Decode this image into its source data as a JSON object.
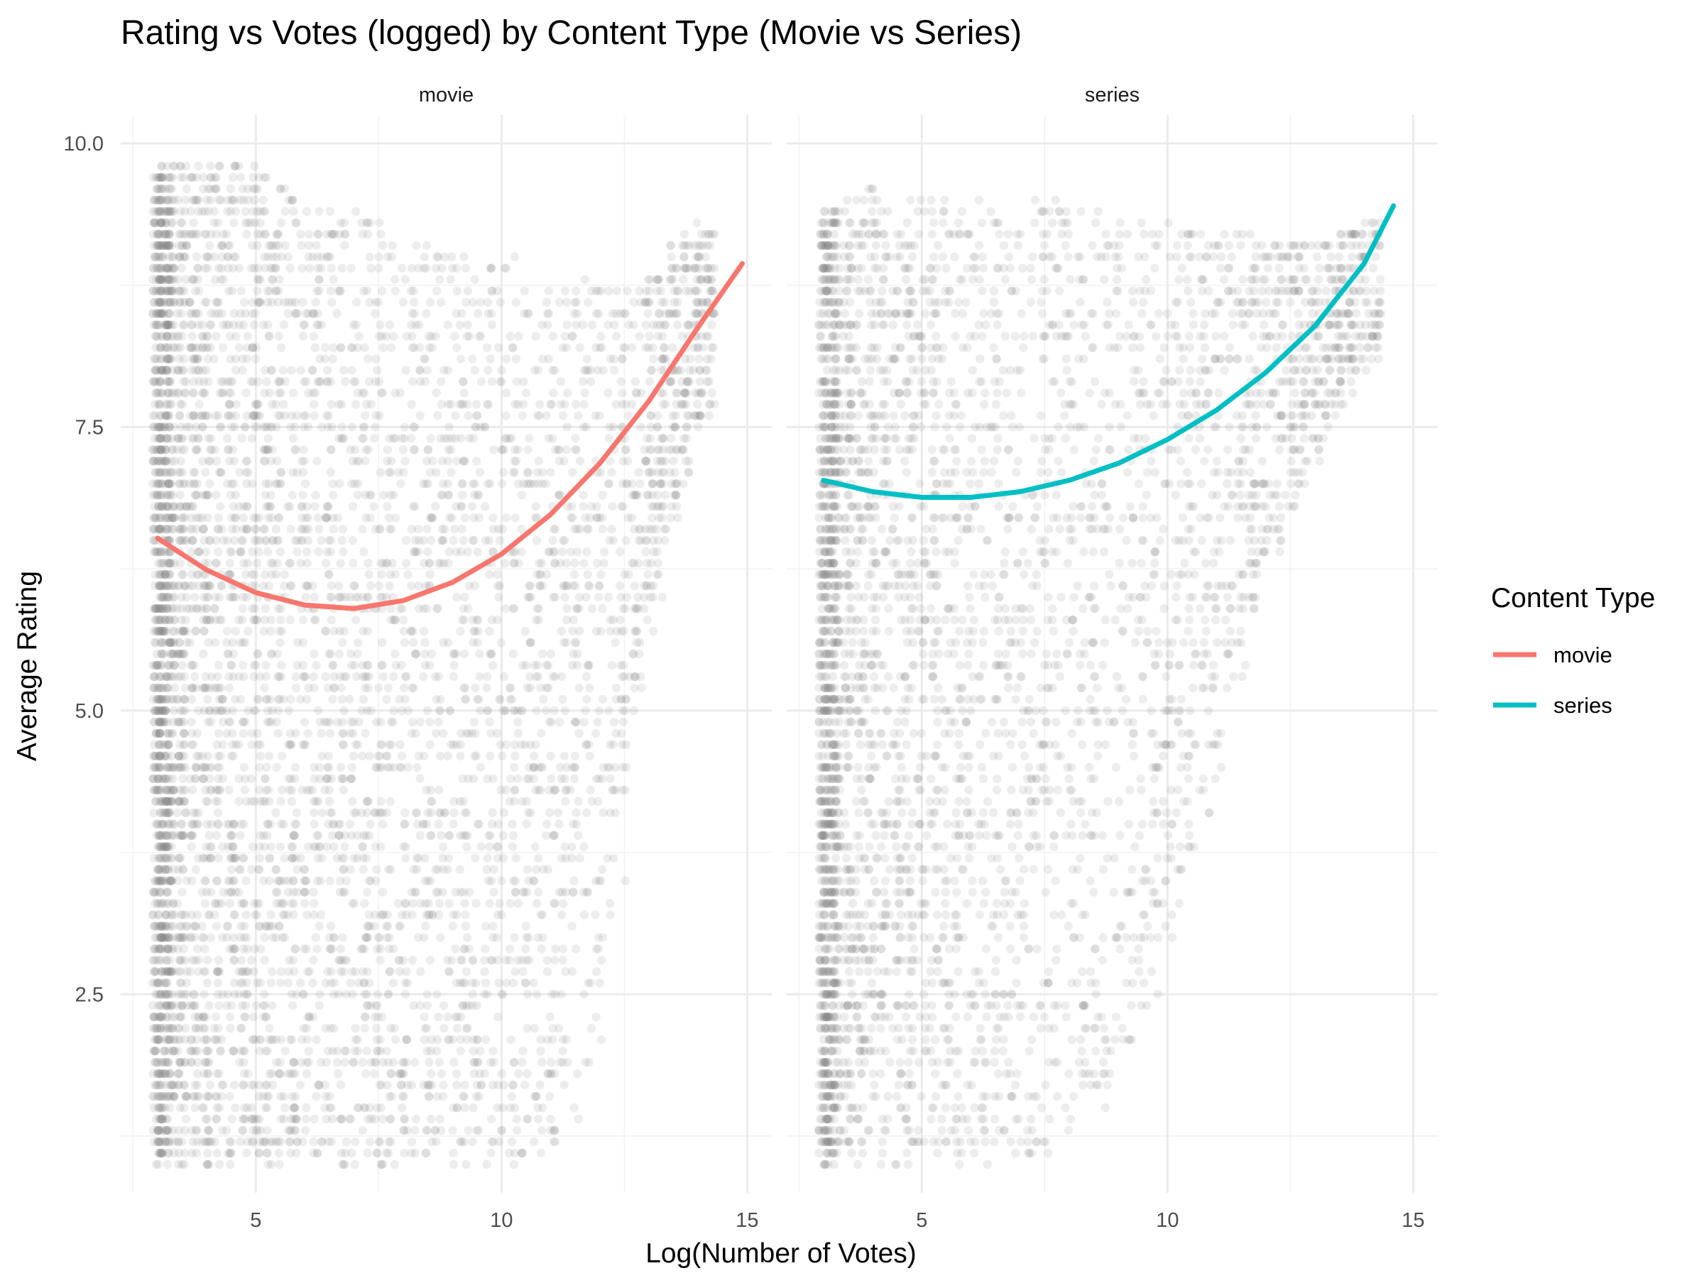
{
  "chart_data": {
    "type": "scatter",
    "title": "Rating vs Votes (logged) by Content Type (Movie vs Series)",
    "xlabel": "Log(Number of Votes)",
    "ylabel": "Average Rating",
    "xlim": [
      2.25,
      15.5
    ],
    "ylim": [
      0.75,
      10.25
    ],
    "x_ticks": [
      5,
      10,
      15
    ],
    "y_ticks": [
      2.5,
      5.0,
      7.5,
      10.0
    ],
    "x_tick_labels": [
      "5",
      "10",
      "15"
    ],
    "y_tick_labels": [
      "2.5",
      "5.0",
      "7.5",
      "10.0"
    ],
    "grid": true,
    "point_color": "#808080",
    "point_opacity": 0.14,
    "legend": {
      "title": "Content Type",
      "position": "right",
      "entries": [
        {
          "label": "movie",
          "color": "#F8766D"
        },
        {
          "label": "series",
          "color": "#00BFC4"
        }
      ]
    },
    "facets": [
      {
        "label": "movie",
        "point_density": {
          "x_min": 3.0,
          "bands": [
            {
              "x": 3.25,
              "y_min": 1.0,
              "y_max": 9.8
            },
            {
              "x": 4.0,
              "y_min": 1.0,
              "y_max": 9.8
            },
            {
              "x": 5.0,
              "y_min": 1.0,
              "y_max": 9.8
            },
            {
              "x": 6.0,
              "y_min": 1.0,
              "y_max": 9.5
            },
            {
              "x": 7.0,
              "y_min": 1.0,
              "y_max": 9.4
            },
            {
              "x": 8.0,
              "y_min": 1.0,
              "y_max": 9.2
            },
            {
              "x": 9.0,
              "y_min": 1.0,
              "y_max": 9.0
            },
            {
              "x": 10.0,
              "y_min": 1.0,
              "y_max": 9.0
            },
            {
              "x": 11.0,
              "y_min": 1.0,
              "y_max": 8.8
            },
            {
              "x": 12.0,
              "y_min": 2.0,
              "y_max": 8.8
            },
            {
              "x": 13.0,
              "y_min": 5.8,
              "y_max": 8.8
            },
            {
              "x": 14.0,
              "y_min": 7.6,
              "y_max": 9.3
            }
          ]
        },
        "trend": {
          "series": "movie",
          "x": [
            3.0,
            4.0,
            5.0,
            6.0,
            7.0,
            8.0,
            9.0,
            10.0,
            11.0,
            12.0,
            13.0,
            14.0,
            14.9
          ],
          "y": [
            6.52,
            6.24,
            6.04,
            5.93,
            5.9,
            5.97,
            6.13,
            6.38,
            6.73,
            7.18,
            7.73,
            8.38,
            8.94
          ]
        }
      },
      {
        "label": "series",
        "point_density": {
          "x_min": 3.0,
          "bands": [
            {
              "x": 3.25,
              "y_min": 1.0,
              "y_max": 9.4
            },
            {
              "x": 4.0,
              "y_min": 1.0,
              "y_max": 9.6
            },
            {
              "x": 5.0,
              "y_min": 1.0,
              "y_max": 9.5
            },
            {
              "x": 6.0,
              "y_min": 1.0,
              "y_max": 9.5
            },
            {
              "x": 7.0,
              "y_min": 1.0,
              "y_max": 9.6
            },
            {
              "x": 8.0,
              "y_min": 1.2,
              "y_max": 9.5
            },
            {
              "x": 9.0,
              "y_min": 1.5,
              "y_max": 9.3
            },
            {
              "x": 10.0,
              "y_min": 3.0,
              "y_max": 9.3
            },
            {
              "x": 11.0,
              "y_min": 4.5,
              "y_max": 9.2
            },
            {
              "x": 12.0,
              "y_min": 6.2,
              "y_max": 9.2
            },
            {
              "x": 13.0,
              "y_min": 7.2,
              "y_max": 9.1
            },
            {
              "x": 14.0,
              "y_min": 8.1,
              "y_max": 9.3
            }
          ]
        },
        "trend": {
          "series": "series",
          "x": [
            3.0,
            4.0,
            5.0,
            6.0,
            7.0,
            8.0,
            9.0,
            10.0,
            11.0,
            12.0,
            13.0,
            14.0,
            14.6
          ],
          "y": [
            7.03,
            6.93,
            6.88,
            6.88,
            6.93,
            7.03,
            7.18,
            7.39,
            7.65,
            7.98,
            8.39,
            8.94,
            9.45
          ]
        }
      }
    ]
  }
}
